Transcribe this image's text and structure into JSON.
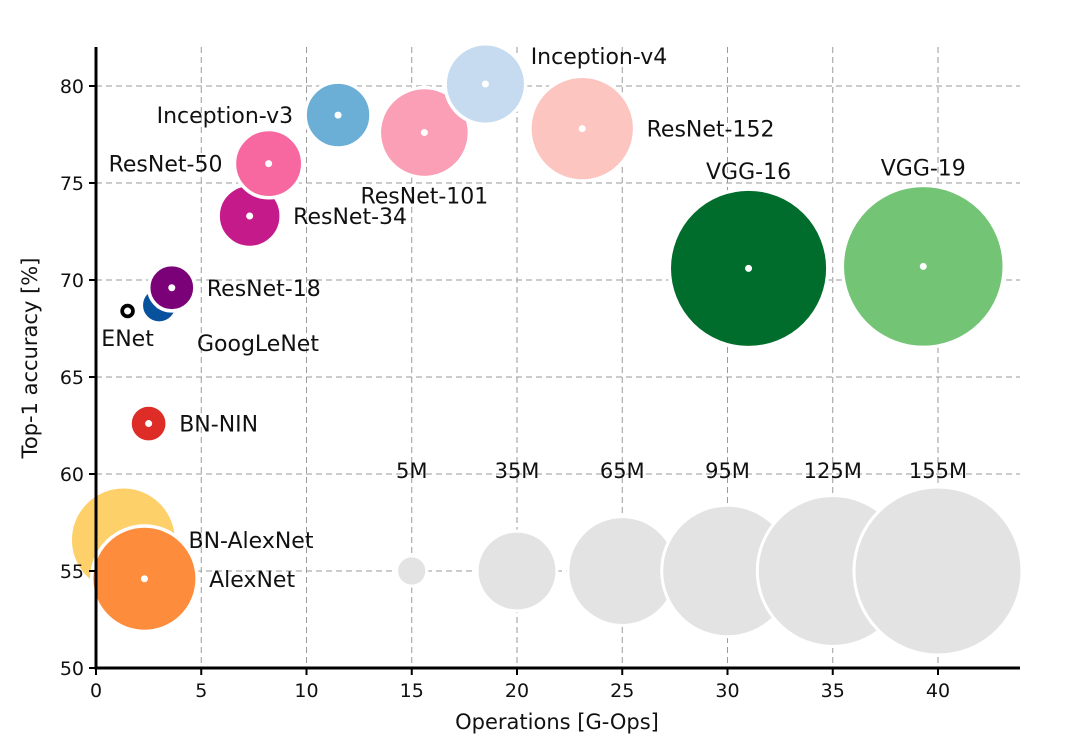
{
  "chart_data": {
    "type": "scatter",
    "subtype": "bubble",
    "title": "",
    "xlabel": "Operations [G-Ops]",
    "ylabel": "Top-1 accuracy [%]",
    "xlim": [
      0,
      44
    ],
    "ylim": [
      50,
      82
    ],
    "xticks": [
      0,
      5,
      10,
      15,
      20,
      25,
      30,
      35,
      40
    ],
    "yticks": [
      50,
      55,
      60,
      65,
      70,
      75,
      80
    ],
    "grid": true,
    "size_unit": "parameters (millions)",
    "points": [
      {
        "name": "BN-AlexNet",
        "ops": 1.3,
        "accuracy": 56.6,
        "params_m": 62,
        "color": "#fdd06a",
        "label_side": "right"
      },
      {
        "name": "AlexNet",
        "ops": 2.3,
        "accuracy": 54.6,
        "params_m": 61,
        "color": "#fd8d3c",
        "label_side": "right"
      },
      {
        "name": "ENet",
        "ops": 1.5,
        "accuracy": 68.4,
        "params_m": 0.4,
        "color": "#000000",
        "label_side": "below"
      },
      {
        "name": "GoogLeNet",
        "ops": 3.0,
        "accuracy": 68.7,
        "params_m": 7,
        "color": "#08519c",
        "label_side": "below-right"
      },
      {
        "name": "ResNet-18",
        "ops": 3.6,
        "accuracy": 69.6,
        "params_m": 11.7,
        "color": "#7a0177",
        "label_side": "right"
      },
      {
        "name": "BN-NIN",
        "ops": 2.5,
        "accuracy": 62.6,
        "params_m": 7.6,
        "color": "#de2d26",
        "label_side": "right"
      },
      {
        "name": "ResNet-34",
        "ops": 7.3,
        "accuracy": 73.3,
        "params_m": 21.8,
        "color": "#c51b8a",
        "label_side": "right"
      },
      {
        "name": "ResNet-50",
        "ops": 8.2,
        "accuracy": 76.0,
        "params_m": 25.6,
        "color": "#f768a1",
        "label_side": "left"
      },
      {
        "name": "Inception-v3",
        "ops": 11.5,
        "accuracy": 78.5,
        "params_m": 23.8,
        "color": "#6baed6",
        "label_side": "left"
      },
      {
        "name": "ResNet-101",
        "ops": 15.6,
        "accuracy": 77.6,
        "params_m": 44.5,
        "color": "#fa9fb5",
        "label_side": "below"
      },
      {
        "name": "Inception-v4",
        "ops": 18.5,
        "accuracy": 80.1,
        "params_m": 35.6,
        "color": "#c6dbef",
        "label_side": "above-right"
      },
      {
        "name": "ResNet-152",
        "ops": 23.1,
        "accuracy": 77.8,
        "params_m": 60.2,
        "color": "#fcc5c0",
        "label_side": "right"
      },
      {
        "name": "VGG-16",
        "ops": 31.0,
        "accuracy": 70.6,
        "params_m": 138,
        "color": "#006d2c",
        "label_side": "above"
      },
      {
        "name": "VGG-19",
        "ops": 39.3,
        "accuracy": 70.7,
        "params_m": 144,
        "color": "#74c476",
        "label_side": "above"
      }
    ],
    "size_legend": {
      "color": "#e3e3e3",
      "accuracy": 55,
      "items": [
        {
          "label": "5M",
          "params_m": 5,
          "ops": 15
        },
        {
          "label": "35M",
          "params_m": 35,
          "ops": 20
        },
        {
          "label": "65M",
          "params_m": 65,
          "ops": 25
        },
        {
          "label": "95M",
          "params_m": 95,
          "ops": 30
        },
        {
          "label": "125M",
          "params_m": 125,
          "ops": 35
        },
        {
          "label": "155M",
          "params_m": 155,
          "ops": 40
        }
      ]
    }
  }
}
